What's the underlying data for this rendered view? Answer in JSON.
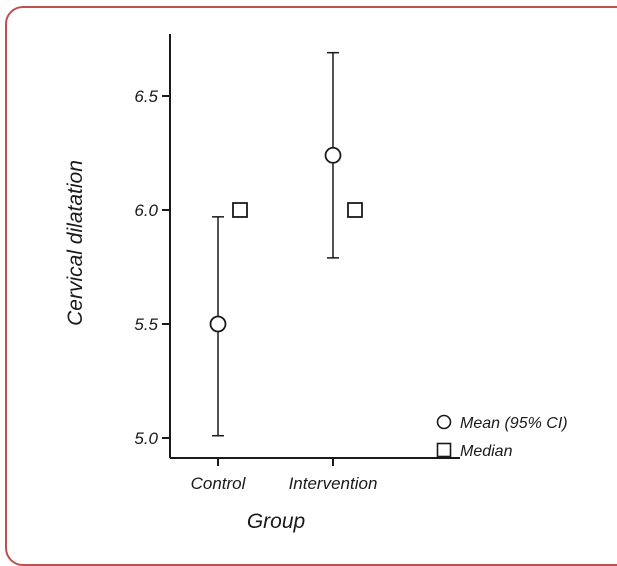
{
  "chart_data": {
    "type": "scatter",
    "categories": [
      "Control",
      "Intervention"
    ],
    "xlabel": "Group",
    "ylabel": "Cervical dilatation",
    "ylim": [
      4.95,
      6.75
    ],
    "yticks": [
      5.0,
      5.5,
      6.0,
      6.5
    ],
    "ytick_labels": [
      "5.0",
      "5.5",
      "6.0",
      "6.5"
    ],
    "series": [
      {
        "name": "Mean (95% CI)",
        "marker": "circle",
        "values": [
          5.5,
          6.24
        ],
        "ci_low": [
          5.01,
          5.79
        ],
        "ci_high": [
          5.97,
          6.69
        ]
      },
      {
        "name": "Median",
        "marker": "square",
        "values": [
          6.0,
          6.0
        ]
      }
    ],
    "legend_position": "bottom-right",
    "grid": false,
    "colors": {
      "frame": "#c0504d",
      "ink": "#1a1a1a",
      "marker_fill": "#ffffff"
    }
  }
}
